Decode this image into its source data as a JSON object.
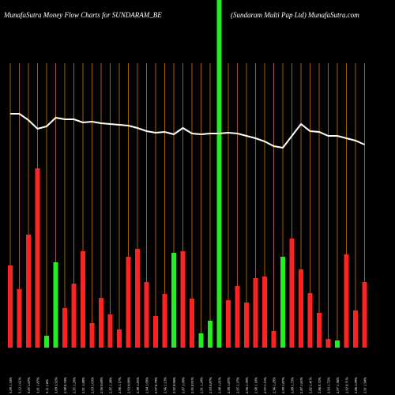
{
  "chart_data": {
    "type": "bar",
    "title": "MunafaSutra  Money Flow  Charts for SUNDARAM_BE",
    "subtitle": "(Sundaram Multi  Pap Ltd) MunafaSutra.com",
    "categories": [
      "3.09 1.74%",
      "3.12 1.61%",
      "3.07 1.67%",
      "3.01 1.87%",
      "3.11 1.6%",
      "3.09 3.92%",
      "2.98 0.74%",
      "2.95 1.29%",
      "2.91 1.08%",
      "2.93 1.03%",
      "2.94 0.69%",
      "2.95 1.38%",
      "2.96 1.17%",
      "2.93 0.89%",
      "2.98 1.05%",
      "2.94 1.09%",
      "2.97 0.79%",
      "2.96 1.13%",
      "2.92 0.96%",
      "2.87 1.09%",
      "2.95 0.91%",
      "2.91 1.24%",
      "2.93 0.87%",
      "2.98 1.01%",
      "2.99 1.87%",
      "2.95 1.37%",
      "2.96 1.39%",
      "2.98 1.18%",
      "2.93 1.15%",
      "2.96 1.29%",
      "2.99 1.87%",
      "2.88 1.73%",
      "2.87 1.65%",
      "2.82 1.41%",
      "2.86 0.72%",
      "2.93 1.72%",
      "2.97 1.36%",
      "2.92 0.71%",
      "2.86 1.09%",
      "2.91 1.94%"
    ],
    "series": [
      {
        "color": "#ff2222",
        "values": [
          104,
          74,
          143,
          227,
          0,
          0,
          50,
          81,
          122,
          31,
          63,
          42,
          23,
          115,
          125,
          83,
          40,
          68,
          0,
          122,
          62,
          0,
          0,
          0,
          60,
          78,
          57,
          88,
          90,
          21,
          0,
          138,
          99,
          69,
          44,
          11,
          0,
          118,
          47,
          83
        ]
      },
      {
        "color": "#22ee22",
        "values": [
          0,
          0,
          0,
          0,
          15,
          108,
          0,
          0,
          0,
          0,
          0,
          0,
          0,
          0,
          0,
          0,
          0,
          0,
          120,
          0,
          0,
          18,
          34,
          440,
          0,
          0,
          0,
          0,
          0,
          0,
          115,
          0,
          0,
          0,
          0,
          0,
          9,
          0,
          0,
          0
        ]
      }
    ],
    "line": {
      "color": "#ffffff",
      "values": [
        296,
        296,
        288,
        277,
        280,
        291,
        289,
        289,
        285,
        286,
        284,
        283,
        282,
        281,
        278,
        274,
        272,
        273,
        270,
        278,
        271,
        270,
        271,
        271,
        272,
        271,
        268,
        265,
        261,
        255,
        253,
        268,
        283,
        274,
        273,
        268,
        268,
        265,
        262,
        257
      ]
    },
    "ylim": [
      0,
      440
    ],
    "grid_color": "#cc7a00",
    "background": "#000000"
  }
}
